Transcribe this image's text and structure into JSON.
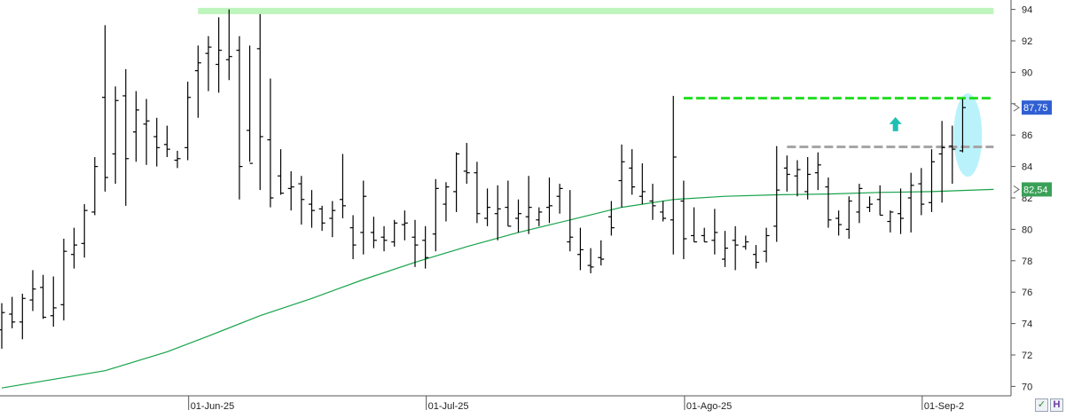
{
  "chart_data": {
    "type": "ohlc",
    "title": "",
    "xlabel": "",
    "ylabel": "",
    "ylim": [
      69.4,
      94.6
    ],
    "y_ticks": [
      70,
      72,
      74,
      76,
      78,
      80,
      82,
      84,
      86,
      88,
      90,
      92,
      94
    ],
    "x_tick_labels": [
      {
        "label": "01-Jun-25",
        "bar": 18
      },
      {
        "label": "01-Jul-25",
        "bar": 41
      },
      {
        "label": "01-Ago-25",
        "bar": 66
      },
      {
        "label": "01-Sep-2",
        "bar": 89
      }
    ],
    "bars": [
      [
        73.6,
        75.3,
        72.4,
        74.7
      ],
      [
        74.6,
        75.7,
        73.7,
        74.1
      ],
      [
        74.1,
        75.9,
        73.0,
        75.6
      ],
      [
        75.5,
        77.4,
        74.8,
        76.2
      ],
      [
        76.3,
        77.1,
        74.3,
        74.4
      ],
      [
        74.5,
        77.0,
        73.8,
        75.0
      ],
      [
        75.2,
        79.4,
        74.2,
        78.6
      ],
      [
        78.4,
        80.1,
        77.5,
        79.0
      ],
      [
        79.1,
        81.6,
        78.2,
        81.2
      ],
      [
        81.1,
        84.6,
        80.9,
        84.0
      ],
      [
        88.4,
        93.0,
        82.4,
        83.3
      ],
      [
        84.8,
        89.1,
        82.9,
        88.2
      ],
      [
        88.5,
        90.2,
        81.5,
        84.5
      ],
      [
        86.2,
        88.8,
        84.3,
        87.6
      ],
      [
        86.7,
        88.3,
        84.1,
        86.9
      ],
      [
        85.9,
        87.1,
        84.0,
        85.2
      ],
      [
        85.4,
        86.6,
        84.6,
        85.1
      ],
      [
        84.4,
        85.0,
        83.9,
        84.5
      ],
      [
        85.2,
        89.4,
        84.4,
        88.4
      ],
      [
        90.1,
        91.7,
        87.1,
        90.6
      ],
      [
        91.2,
        92.3,
        88.8,
        91.6
      ],
      [
        90.5,
        93.5,
        88.7,
        91.4
      ],
      [
        90.8,
        94.0,
        89.5,
        91.0
      ],
      [
        91.4,
        92.3,
        81.9,
        84.0
      ],
      [
        86.3,
        91.7,
        84.3,
        84.2
      ],
      [
        91.5,
        93.7,
        82.5,
        85.9
      ],
      [
        85.7,
        89.6,
        81.4,
        82.0
      ],
      [
        83.4,
        85.1,
        82.2,
        82.3
      ],
      [
        82.6,
        83.7,
        81.2,
        82.7
      ],
      [
        82.9,
        83.4,
        80.3,
        81.9
      ],
      [
        81.6,
        82.5,
        80.1,
        81.2
      ],
      [
        81.3,
        81.5,
        79.9,
        80.4
      ],
      [
        80.7,
        81.8,
        79.5,
        81.2
      ],
      [
        81.9,
        84.8,
        80.7,
        81.5
      ],
      [
        80.1,
        80.9,
        78.1,
        79.0
      ],
      [
        79.8,
        83.1,
        78.4,
        82.1
      ],
      [
        79.8,
        80.8,
        78.8,
        79.3
      ],
      [
        79.5,
        80.2,
        78.6,
        79.3
      ],
      [
        79.2,
        80.6,
        78.9,
        80.4
      ],
      [
        80.3,
        81.2,
        79.3,
        80.4
      ],
      [
        79.5,
        80.6,
        77.6,
        79.0
      ],
      [
        79.3,
        80.2,
        77.5,
        78.2
      ],
      [
        79.7,
        83.2,
        78.6,
        82.6
      ],
      [
        81.6,
        83.0,
        80.5,
        82.7
      ],
      [
        82.4,
        84.9,
        81.1,
        84.8
      ],
      [
        83.7,
        85.5,
        82.9,
        83.6
      ],
      [
        83.6,
        84.3,
        80.4,
        81.0
      ],
      [
        80.7,
        82.6,
        80.2,
        81.4
      ],
      [
        81.0,
        82.8,
        79.3,
        81.3
      ],
      [
        81.4,
        83.1,
        80.2,
        80.2
      ],
      [
        80.7,
        81.9,
        79.8,
        81.0
      ],
      [
        80.8,
        83.4,
        79.7,
        81.4
      ],
      [
        80.6,
        81.4,
        80.2,
        81.1
      ],
      [
        81.4,
        83.3,
        80.4,
        81.5
      ],
      [
        82.1,
        82.9,
        81.0,
        82.6
      ],
      [
        79.2,
        82.5,
        78.6,
        79.5
      ],
      [
        78.4,
        80.1,
        77.4,
        78.7
      ],
      [
        77.7,
        78.8,
        77.2,
        77.6
      ],
      [
        78.2,
        79.3,
        77.7,
        78.1
      ],
      [
        80.8,
        81.8,
        79.6,
        80.1
      ],
      [
        83.1,
        85.4,
        81.4,
        84.3
      ],
      [
        83.9,
        85.1,
        82.2,
        82.7
      ],
      [
        82.1,
        84.2,
        81.6,
        82.4
      ],
      [
        81.8,
        82.9,
        80.6,
        81.5
      ],
      [
        81.1,
        81.8,
        80.5,
        80.7
      ],
      [
        80.6,
        88.5,
        78.4,
        84.6
      ],
      [
        81.8,
        83.1,
        78.1,
        79.4
      ],
      [
        79.6,
        81.4,
        79.2,
        79.2
      ],
      [
        79.6,
        80.1,
        79.2,
        79.2
      ],
      [
        79.3,
        81.3,
        78.4,
        79.8
      ],
      [
        78.1,
        79.9,
        77.6,
        78.8
      ],
      [
        79.3,
        80.2,
        77.4,
        79.0
      ],
      [
        78.9,
        79.6,
        78.7,
        79.2
      ],
      [
        78.4,
        79.0,
        77.5,
        77.9
      ],
      [
        78.6,
        80.1,
        77.9,
        79.6
      ],
      [
        80.2,
        85.3,
        79.2,
        82.5
      ],
      [
        83.9,
        84.7,
        82.4,
        83.5
      ],
      [
        83.4,
        84.4,
        82.1,
        83.8
      ],
      [
        82.4,
        84.6,
        81.9,
        83.5
      ],
      [
        83.6,
        84.9,
        82.5,
        84.1
      ],
      [
        82.7,
        83.3,
        80.1,
        80.6
      ],
      [
        80.7,
        81.2,
        79.6,
        80.3
      ],
      [
        80.0,
        82.1,
        79.4,
        81.8
      ],
      [
        81.1,
        82.9,
        80.4,
        82.6
      ],
      [
        81.4,
        82.1,
        81.1,
        81.6
      ],
      [
        81.9,
        82.8,
        80.9,
        80.9
      ],
      [
        80.5,
        81.2,
        79.8,
        81.1
      ],
      [
        81.0,
        82.6,
        79.7,
        80.7
      ],
      [
        82.0,
        83.6,
        79.8,
        82.8
      ],
      [
        82.9,
        83.9,
        80.9,
        81.6
      ],
      [
        81.7,
        85.1,
        81.1,
        84.3
      ],
      [
        84.8,
        86.9,
        81.7,
        85.2
      ],
      [
        85.3,
        86.6,
        82.9,
        85.1
      ],
      [
        85.0,
        88.3,
        84.9,
        87.75
      ]
    ],
    "moving_average": {
      "color": "#16a34a",
      "points": [
        [
          0,
          69.9
        ],
        [
          10,
          71.0
        ],
        [
          16,
          72.2
        ],
        [
          20,
          73.2
        ],
        [
          25,
          74.5
        ],
        [
          30,
          75.6
        ],
        [
          35,
          76.8
        ],
        [
          40,
          77.9
        ],
        [
          45,
          78.9
        ],
        [
          50,
          79.8
        ],
        [
          55,
          80.6
        ],
        [
          60,
          81.4
        ],
        [
          65,
          81.9
        ],
        [
          70,
          82.1
        ],
        [
          75,
          82.2
        ],
        [
          80,
          82.25
        ],
        [
          85,
          82.35
        ],
        [
          90,
          82.4
        ],
        [
          96,
          82.54
        ]
      ]
    },
    "levels": [
      {
        "value": 93.9,
        "from_bar": 19,
        "to_bar": 96,
        "color": "#bdf5bd",
        "style": "solid"
      },
      {
        "value": 88.35,
        "from_bar": 66,
        "to_bar": 96,
        "color": "#22dd22",
        "style": "dashed"
      },
      {
        "value": 85.25,
        "from_bar": 76,
        "to_bar": 96,
        "color": "#a6a6a6",
        "style": "dashed"
      }
    ],
    "annotations": {
      "arrow": {
        "bar": 86.5,
        "value": 86.7,
        "color": "#1fc0b4"
      },
      "highlight": {
        "bar": 93.5,
        "value": 86.0,
        "color": "#aef0fc"
      }
    },
    "price_labels": [
      {
        "text": "87,75",
        "value": 87.75,
        "color": "#2f5fd2",
        "text_color": "#ffffff",
        "arrow_color": "#666666"
      },
      {
        "text": "82,54",
        "value": 82.54,
        "color": "#3aa058",
        "text_color": "#ffffff",
        "arrow_color": "#666666"
      }
    ],
    "grid": false,
    "legend": "none",
    "bar_color": "#000000"
  },
  "controls": {
    "check_icon": "✓",
    "h_button_label": "H",
    "check_color": "#2a8a2a",
    "h_color": "#6a3aa0"
  }
}
